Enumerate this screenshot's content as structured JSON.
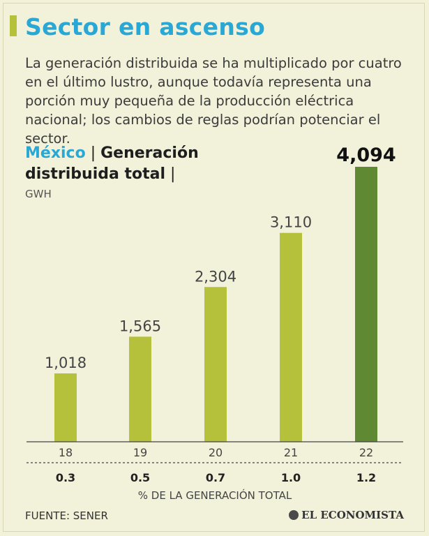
{
  "header": {
    "title": "Sector en ascenso",
    "subtitle": "La generación distribuida se ha multiplicado por cuatro en el último lustro, aunque todavía representa una porción muy pequeña de la producción eléctrica nacional; los cambios de reglas podrían potenciar el sector."
  },
  "chart_head": {
    "country": "México",
    "sep1": " | ",
    "label": "Generación distribuida total",
    "sep2": " |",
    "unit": "GWH"
  },
  "chart_data": {
    "type": "bar",
    "categories": [
      "18",
      "19",
      "20",
      "21",
      "22"
    ],
    "values": [
      1018,
      1565,
      2304,
      3110,
      4094
    ],
    "value_labels": [
      "1,018",
      "1,565",
      "2,304",
      "3,110",
      "4,094"
    ],
    "secondary_values": [
      "0.3",
      "0.5",
      "0.7",
      "1.0",
      "1.2"
    ],
    "secondary_label": "% DE LA GENERACIÓN TOTAL",
    "ylabel": "GWH",
    "ylim": [
      0,
      4094
    ],
    "colors": {
      "bar": "#b5c13a",
      "highlight": "#5f8a33"
    }
  },
  "footer": {
    "source": "FUENTE: SENER",
    "brand": "EL ECONOMISTA"
  }
}
